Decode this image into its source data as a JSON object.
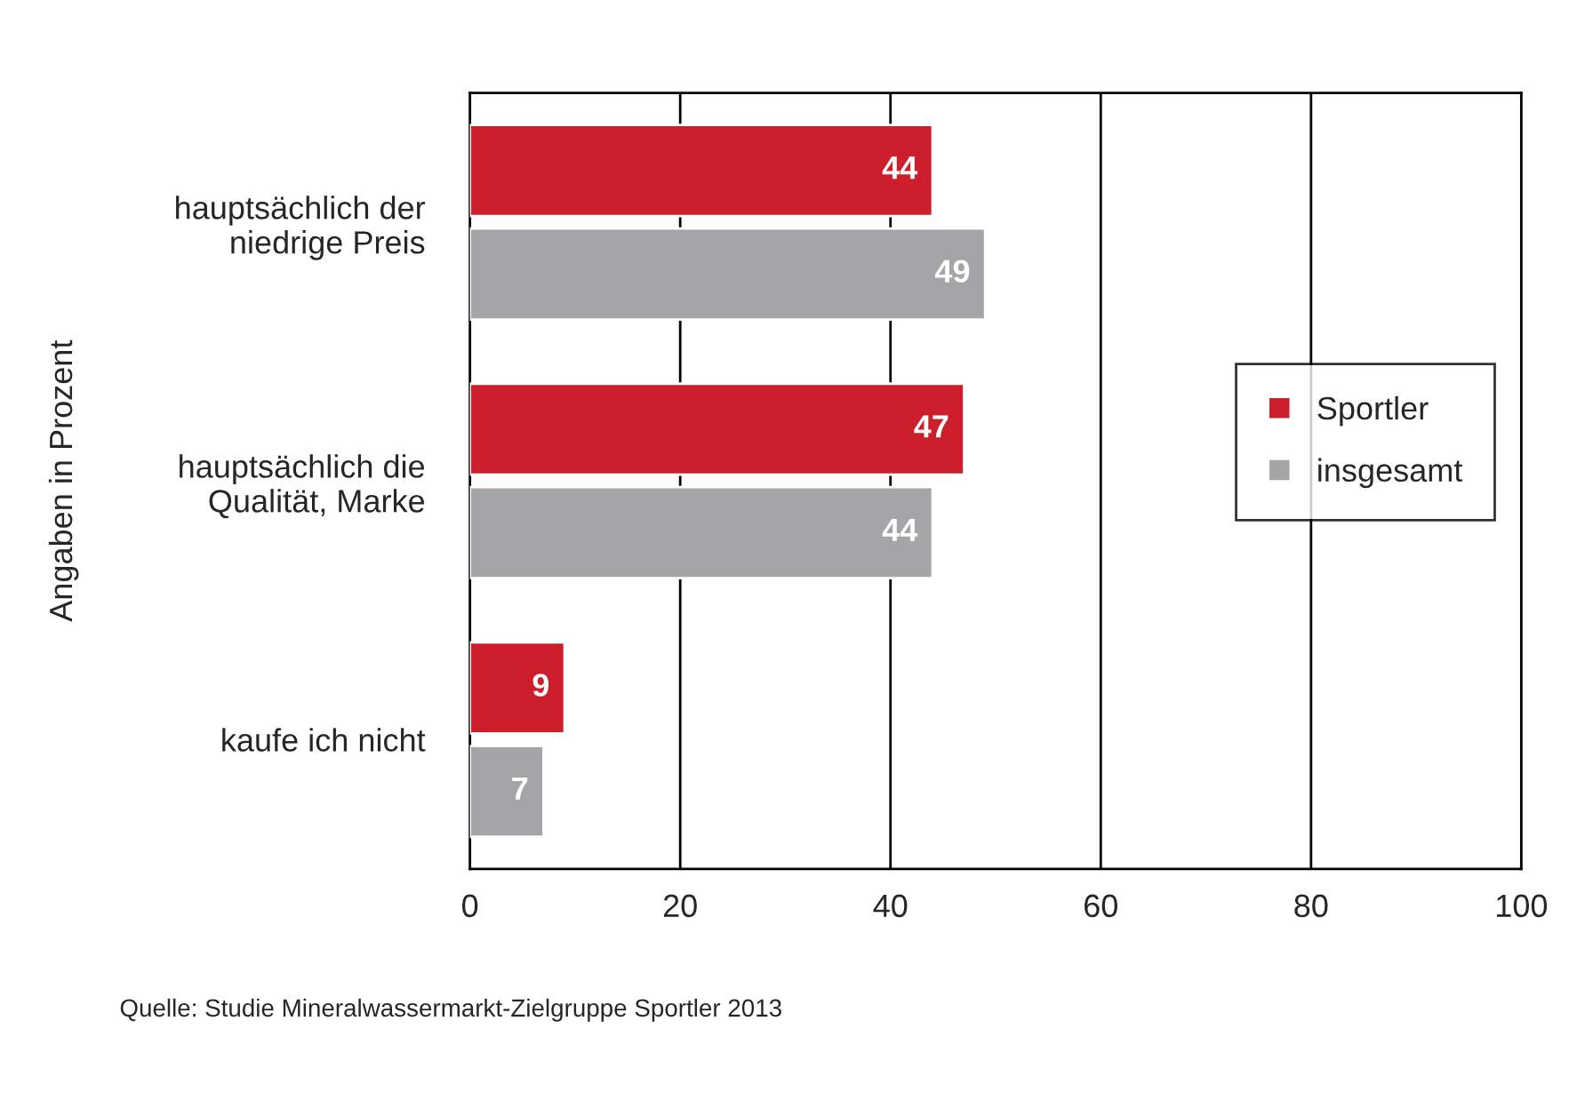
{
  "chart_data": {
    "type": "bar",
    "orientation": "horizontal",
    "ylabel": "Angaben in Prozent",
    "categories": [
      "hauptsächlich der\nniedrige Preis",
      "hauptsächlich die\nQualität, Marke",
      "kaufe ich nicht"
    ],
    "series": [
      {
        "name": "Sportler",
        "color": "#cc1f2b",
        "values": [
          44,
          47,
          9
        ]
      },
      {
        "name": "insgesamt",
        "color": "#a5a4a6",
        "values": [
          49,
          44,
          7
        ]
      }
    ],
    "xlim": [
      0,
      100
    ],
    "xticks": [
      0,
      20,
      40,
      60,
      80,
      100
    ],
    "grid": "x",
    "legend": "right",
    "data_labels": true,
    "annotations": [
      "Quelle: Studie Mineralwassermarkt-Zielgruppe Sportler 2013"
    ]
  }
}
